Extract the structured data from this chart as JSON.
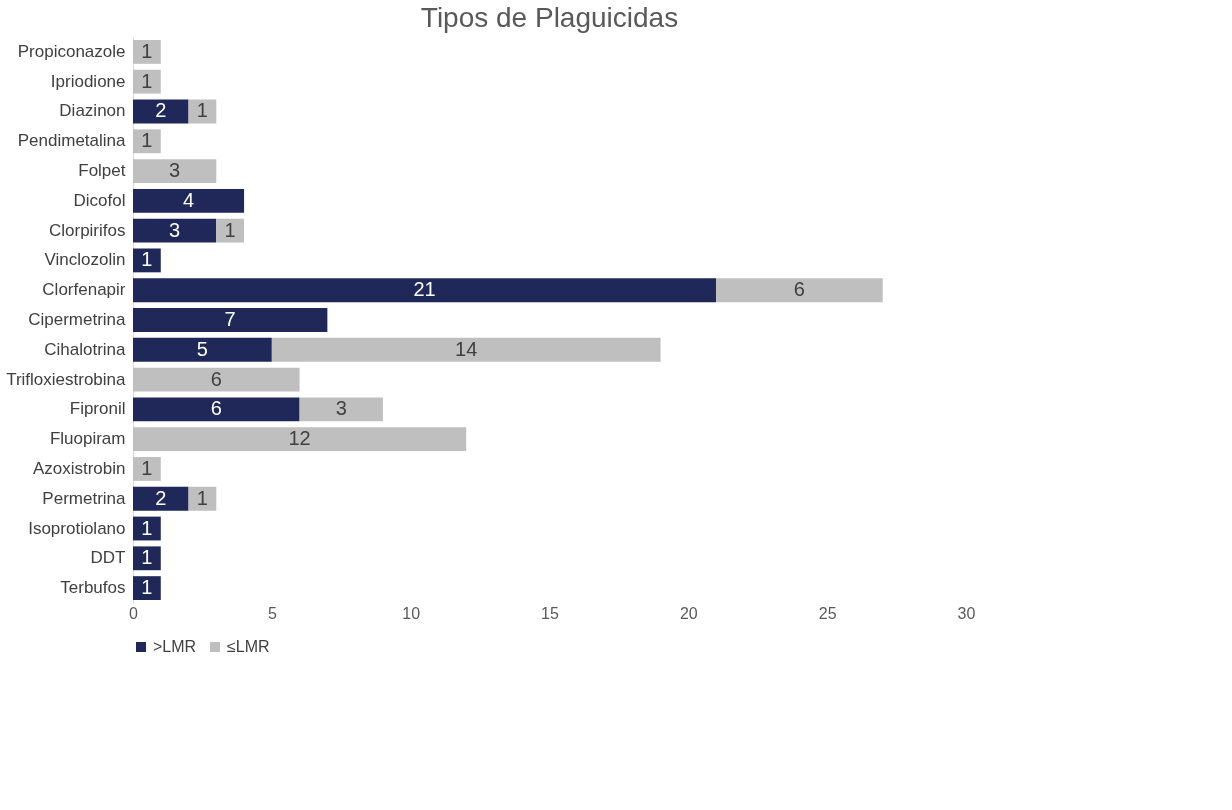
{
  "chart_data": {
    "type": "bar",
    "orientation": "horizontal",
    "stacked": true,
    "title": "Tipos de Plaguicidas",
    "categories": [
      "Propiconazole",
      "Ipriodione",
      "Diazinon",
      "Pendimetalina",
      "Folpet",
      "Dicofol",
      "Clorpirifos",
      "Vinclozolin",
      "Clorfenapir",
      "Cipermetrina",
      "Cihalotrina",
      "Trifloxiestrobina",
      "Fipronil",
      "Fluopiram",
      "Azoxistrobin",
      "Permetrina",
      "Isoprotiolano",
      "DDT",
      "Terbufos"
    ],
    "series": [
      {
        "name": ">LMR",
        "color": "#1f2859",
        "values": [
          null,
          null,
          2,
          null,
          null,
          4,
          3,
          1,
          21,
          7,
          5,
          null,
          6,
          null,
          null,
          2,
          1,
          1,
          1
        ]
      },
      {
        "name": "≤LMR",
        "color": "#bfbfbf",
        "values": [
          1,
          1,
          1,
          1,
          3,
          null,
          1,
          null,
          6,
          null,
          14,
          6,
          3,
          12,
          1,
          1,
          null,
          null,
          null
        ]
      }
    ],
    "xlim": [
      0,
      30
    ],
    "xticks": [
      0,
      5,
      10,
      15,
      20,
      25,
      30
    ],
    "grid": false,
    "legend": "bottom",
    "data_labels": true
  }
}
